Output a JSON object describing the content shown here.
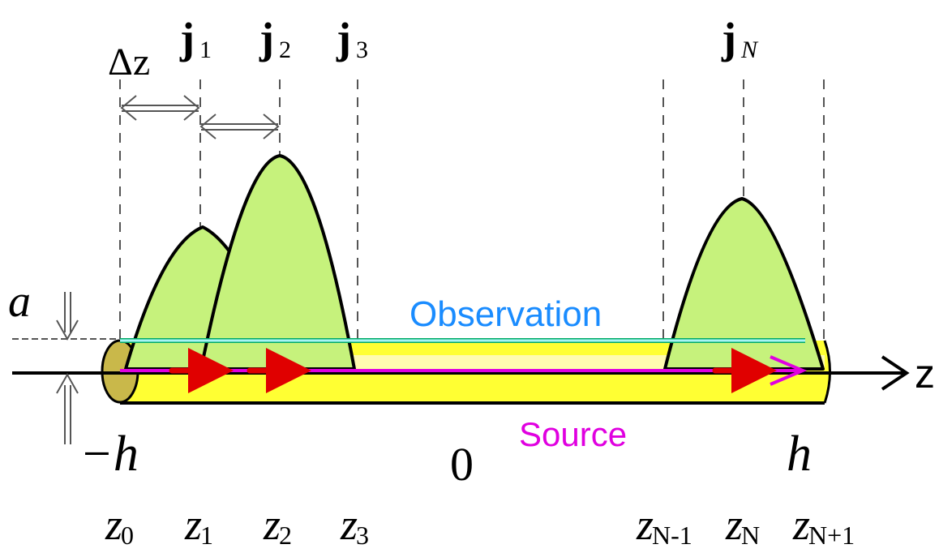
{
  "labels": {
    "delta_z": "Δz",
    "a": "a",
    "observation": "Observation",
    "source": "Source",
    "minus_h": "−h",
    "zero": "0",
    "h": "h",
    "z_axis": "z"
  },
  "currents": [
    {
      "base": "j",
      "sub": "1"
    },
    {
      "base": "j",
      "sub": "2"
    },
    {
      "base": "j",
      "sub": "3"
    },
    {
      "base": "j",
      "sub": "N"
    }
  ],
  "nodes": [
    {
      "base": "z",
      "sub": "0"
    },
    {
      "base": "z",
      "sub": "1"
    },
    {
      "base": "z",
      "sub": "2"
    },
    {
      "base": "z",
      "sub": "3"
    },
    {
      "base": "z",
      "sub": "N-1"
    },
    {
      "base": "z",
      "sub": "N"
    },
    {
      "base": "z",
      "sub": "N+1"
    }
  ]
}
